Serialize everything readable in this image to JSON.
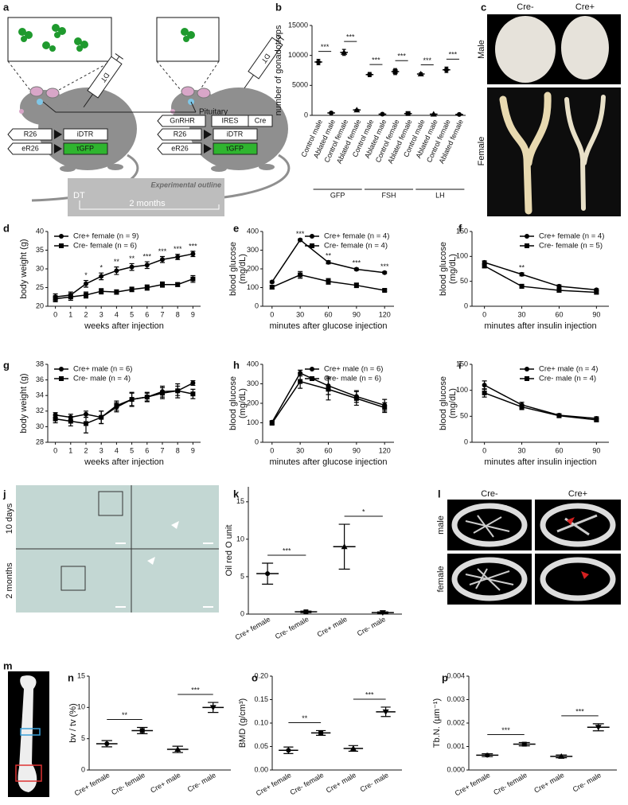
{
  "schematic": {
    "panel": "a",
    "pituitary": "Pituitary",
    "injection": [
      "DT",
      "DT"
    ],
    "control_constructs": [
      [
        "R26",
        "iDTR"
      ],
      [
        "eR26",
        "τGFP"
      ]
    ],
    "gnrhr_constructs": [
      [
        "GnRHR",
        "IRES",
        "Cre"
      ],
      [
        "R26",
        "iDTR"
      ],
      [
        "eR26",
        "τGFP"
      ]
    ],
    "outline": {
      "title": "Experimental outline",
      "start": "DT",
      "duration": "2 months"
    }
  },
  "photos": {
    "panel": "c",
    "columns": [
      "Cre-",
      "Cre+"
    ],
    "rows": [
      "Male",
      "Female"
    ]
  },
  "histology": {
    "panel": "j",
    "rows": [
      "10 days",
      "2 months"
    ]
  },
  "microct": {
    "panel": "l",
    "columns": [
      "Cre-",
      "Cre+"
    ],
    "rows": [
      "male",
      "female"
    ]
  },
  "femur": {
    "panel": "m"
  },
  "chart_data": [
    {
      "panel": "b",
      "type": "dot",
      "ylabel": "number of gonadotrops",
      "color": "#000000",
      "categories": [
        "Control male",
        "Ablated male",
        "Control female",
        "Ablated female",
        "Control male",
        "Ablated male",
        "Control female",
        "Ablated female",
        "Control male",
        "Ablated male",
        "Control female",
        "Ablated female"
      ],
      "groups": [
        "GFP",
        "FSH",
        "LH"
      ],
      "values": [
        8900,
        400,
        10500,
        900,
        6800,
        200,
        7300,
        300,
        6900,
        200,
        7600,
        150
      ],
      "errors": [
        450,
        80,
        500,
        100,
        350,
        60,
        500,
        80,
        200,
        50,
        450,
        40
      ],
      "markers": [
        "circle",
        "circle",
        "triangle",
        "triangle",
        "circle",
        "circle",
        "square",
        "square",
        "triangle",
        "triangle",
        "circle",
        "circle"
      ],
      "significance": [
        "***",
        "***",
        "***",
        "***",
        "***",
        "***"
      ],
      "significance_bars": true,
      "ylim": [
        0,
        15000
      ],
      "yticks": [
        0,
        5000,
        10000,
        15000
      ]
    },
    {
      "panel": "d",
      "type": "line",
      "xlabel": "weeks after injection",
      "ylabel": "body weight (g)",
      "legend": "upper left",
      "x": [
        0,
        1,
        2,
        3,
        4,
        5,
        6,
        7,
        8,
        9
      ],
      "xlim": [
        -0.5,
        9.5
      ],
      "xticks": [
        0,
        1,
        2,
        3,
        4,
        5,
        6,
        7,
        8,
        9
      ],
      "ylim": [
        20,
        40
      ],
      "yticks": [
        20,
        25,
        30,
        35,
        40
      ],
      "series": [
        {
          "name": "Cre+ female (n = 9)",
          "color": "#000000",
          "marker": "circle",
          "values": [
            22.5,
            23,
            26,
            28,
            29.5,
            30.5,
            31,
            32.5,
            33.2,
            34
          ],
          "errors": [
            0.8,
            0.8,
            0.9,
            0.9,
            1.0,
            0.9,
            0.9,
            0.8,
            0.7,
            0.7
          ]
        },
        {
          "name": "Cre- female (n = 6)",
          "color": "#000000",
          "marker": "square",
          "values": [
            22,
            22.5,
            23,
            24,
            23.8,
            24.5,
            25,
            25.8,
            25.8,
            27.3
          ],
          "errors": [
            0.8,
            0.9,
            0.8,
            0.7,
            0.6,
            0.6,
            0.7,
            0.7,
            0.5,
            0.9
          ]
        }
      ],
      "significance": [
        null,
        null,
        "*",
        "*",
        "**",
        "**",
        "***",
        "***",
        "***",
        "***"
      ]
    },
    {
      "panel": "e",
      "type": "line",
      "xlabel": "minutes after glucose injection",
      "ylabel": [
        "blood glucose",
        "(mg/dL)"
      ],
      "legend": "upper right",
      "x": [
        0,
        30,
        60,
        90,
        120
      ],
      "xlim": [
        -10,
        130
      ],
      "xticks": [
        0,
        30,
        60,
        90,
        120
      ],
      "ylim": [
        0,
        400
      ],
      "yticks": [
        0,
        100,
        200,
        300,
        400
      ],
      "series": [
        {
          "name": "Cre+ female (n = 4)",
          "color": "#000000",
          "marker": "circle",
          "values": [
            130,
            355,
            235,
            198,
            180
          ],
          "errors": [
            5,
            5,
            8,
            6,
            5
          ]
        },
        {
          "name": "Cre- female (n = 4)",
          "color": "#000000",
          "marker": "square",
          "values": [
            102,
            168,
            133,
            112,
            85
          ],
          "errors": [
            10,
            18,
            15,
            12,
            6
          ]
        }
      ],
      "significance": [
        null,
        "***",
        "**",
        "***",
        "***"
      ]
    },
    {
      "panel": "f",
      "type": "line",
      "xlabel": "minutes after insulin injection",
      "ylabel": [
        "blood glucose",
        "(mg/dL)"
      ],
      "legend": "upper right",
      "x": [
        0,
        30,
        60,
        90
      ],
      "xlim": [
        -10,
        100
      ],
      "xticks": [
        0,
        30,
        60,
        90
      ],
      "ylim": [
        0,
        150
      ],
      "yticks": [
        0,
        50,
        100,
        150
      ],
      "series": [
        {
          "name": "Cre+ female (n = 4)",
          "color": "#000000",
          "marker": "circle",
          "values": [
            88,
            64,
            40,
            33
          ],
          "errors": [
            3,
            3,
            3,
            2
          ]
        },
        {
          "name": "Cre- female (n = 5)",
          "color": "#000000",
          "marker": "square",
          "values": [
            81,
            40,
            32,
            28
          ],
          "errors": [
            4,
            4,
            4,
            3
          ]
        }
      ],
      "significance": [
        null,
        "**",
        null,
        null
      ]
    },
    {
      "panel": "g",
      "type": "line",
      "xlabel": "weeks after injection",
      "ylabel": "body weight (g)",
      "legend": "upper left",
      "x": [
        0,
        1,
        2,
        3,
        4,
        5,
        6,
        7,
        8,
        9
      ],
      "xlim": [
        -0.5,
        9.5
      ],
      "xticks": [
        0,
        1,
        2,
        3,
        4,
        5,
        6,
        7,
        8,
        9
      ],
      "ylim": [
        28,
        38
      ],
      "yticks": [
        28,
        30,
        32,
        34,
        36,
        38
      ],
      "series": [
        {
          "name": "Cre+ male (n = 6)",
          "color": "#000000",
          "marker": "circle",
          "values": [
            31.5,
            31.2,
            31.6,
            31.2,
            32.5,
            33.5,
            33.8,
            34.5,
            34.6,
            35.6
          ],
          "errors": [
            0.3,
            0.4,
            0.4,
            0.8,
            0.6,
            0.8,
            0.5,
            0.7,
            0.9,
            0.3
          ]
        },
        {
          "name": "Cre- male (n = 4)",
          "color": "#000000",
          "marker": "square",
          "values": [
            31,
            30.7,
            30.4,
            31.2,
            32.7,
            33.5,
            33.8,
            34.3,
            34.6,
            34.2
          ],
          "errors": [
            0.5,
            0.6,
            1.2,
            0.8,
            0.6,
            0.9,
            0.6,
            0.7,
            0.6,
            0.6
          ]
        }
      ]
    },
    {
      "panel": "h",
      "type": "line",
      "xlabel": "minutes after glucose injection",
      "ylabel": [
        "blood glucose",
        "(mg/dL)"
      ],
      "legend": "upper right",
      "x": [
        0,
        30,
        60,
        90,
        120
      ],
      "xlim": [
        -10,
        130
      ],
      "xticks": [
        0,
        30,
        60,
        90,
        120
      ],
      "ylim": [
        0,
        400
      ],
      "yticks": [
        0,
        100,
        200,
        300,
        400
      ],
      "series": [
        {
          "name": "Cre+ male (n = 6)",
          "color": "#000000",
          "marker": "circle",
          "values": [
            103,
            355,
            290,
            235,
            190
          ],
          "errors": [
            8,
            15,
            45,
            30,
            30
          ]
        },
        {
          "name": "Cre- male (n = 6)",
          "color": "#000000",
          "marker": "square",
          "values": [
            98,
            312,
            272,
            225,
            178
          ],
          "errors": [
            8,
            35,
            55,
            35,
            25
          ]
        }
      ]
    },
    {
      "panel": "i",
      "type": "line",
      "xlabel": "minutes after insulin injection",
      "ylabel": [
        "blood glucose",
        "(mg/dL)"
      ],
      "legend": "upper right",
      "x": [
        0,
        30,
        60,
        90
      ],
      "xlim": [
        -10,
        100
      ],
      "xticks": [
        0,
        30,
        60,
        90
      ],
      "ylim": [
        0,
        150
      ],
      "yticks": [
        0,
        50,
        100,
        150
      ],
      "series": [
        {
          "name": "Cre+ male (n = 4)",
          "color": "#000000",
          "marker": "circle",
          "values": [
            110,
            72,
            52,
            46
          ],
          "errors": [
            8,
            5,
            3,
            3
          ]
        },
        {
          "name": "Cre- male (n = 4)",
          "color": "#000000",
          "marker": "square",
          "values": [
            95,
            68,
            51,
            43
          ],
          "errors": [
            8,
            5,
            3,
            3
          ]
        }
      ]
    },
    {
      "panel": "k",
      "type": "dot",
      "ylabel": "Oil red O unit",
      "color": "#000000",
      "categories": [
        "Cre+ female",
        "Cre- female",
        "Cre+ male",
        "Cre- male"
      ],
      "values": [
        5.4,
        0.3,
        9.0,
        0.2
      ],
      "errors": [
        1.4,
        0.1,
        3.0,
        0.1
      ],
      "markers": [
        "circle",
        "square",
        "triangle",
        "triangle-down"
      ],
      "significance": [
        "***",
        "*"
      ],
      "significance_bars": true,
      "ylim": [
        0,
        17
      ],
      "yticks": [
        0,
        5,
        10,
        15
      ]
    },
    {
      "panel": "n",
      "type": "dot",
      "ylabel": "bv / tv (%)",
      "color": "#000000",
      "categories": [
        "Cre+ female",
        "Cre- female",
        "Cre+ male",
        "Cre- male"
      ],
      "values": [
        4.2,
        6.3,
        3.3,
        10.0
      ],
      "errors": [
        0.5,
        0.5,
        0.5,
        0.8
      ],
      "markers": [
        "circle",
        "square",
        "triangle",
        "triangle-down"
      ],
      "significance": [
        "**",
        "***"
      ],
      "significance_bars": true,
      "ylim": [
        0,
        15
      ],
      "yticks": [
        0,
        5,
        10,
        15
      ]
    },
    {
      "panel": "o",
      "type": "dot",
      "ylabel": "BMD (g/cm³)",
      "color": "#000000",
      "categories": [
        "Cre+ female",
        "Cre- female",
        "Cre+ male",
        "Cre- male"
      ],
      "values": [
        0.042,
        0.079,
        0.046,
        0.124
      ],
      "errors": [
        0.007,
        0.005,
        0.006,
        0.01
      ],
      "markers": [
        "circle",
        "square",
        "triangle",
        "triangle-down"
      ],
      "significance": [
        "**",
        "***"
      ],
      "significance_bars": true,
      "ylim": [
        0,
        0.2
      ],
      "yticks": [
        {
          "value": 0,
          "label": "0.00"
        },
        {
          "value": 0.05,
          "label": "0.05"
        },
        {
          "value": 0.1,
          "label": "0.10"
        },
        {
          "value": 0.15,
          "label": "0.15"
        },
        {
          "value": 0.2,
          "label": "0.20"
        }
      ]
    },
    {
      "panel": "p",
      "type": "dot",
      "ylabel": "Tb.N. (µm⁻¹)",
      "color": "#000000",
      "categories": [
        "Cre+ female",
        "Cre- female",
        "Cre+ male",
        "Cre- male"
      ],
      "values": [
        0.00063,
        0.0011,
        0.00058,
        0.00182
      ],
      "errors": [
        6e-05,
        7e-05,
        6e-05,
        0.00015
      ],
      "markers": [
        "circle",
        "square",
        "triangle",
        "triangle-down"
      ],
      "significance": [
        "***",
        "***"
      ],
      "significance_bars": true,
      "ylim": [
        0,
        0.004
      ],
      "yticks": [
        {
          "value": 0,
          "label": "0.000"
        },
        {
          "value": 0.001,
          "label": "0.001"
        },
        {
          "value": 0.002,
          "label": "0.002"
        },
        {
          "value": 0.003,
          "label": "0.003"
        },
        {
          "value": 0.004,
          "label": "0.004"
        }
      ]
    }
  ]
}
